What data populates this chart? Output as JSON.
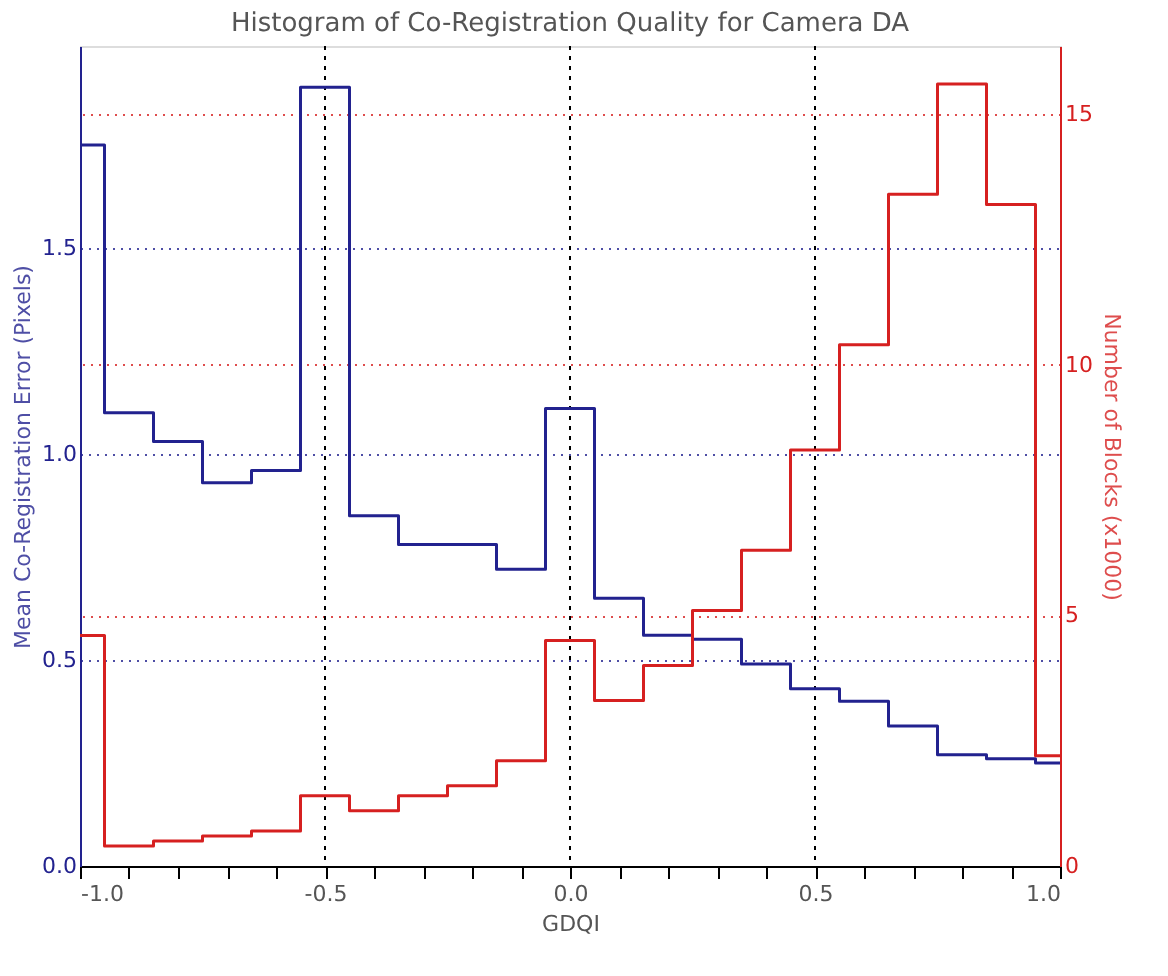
{
  "chart_data": {
    "type": "histogram",
    "title": "Histogram of Co-Registration Quality for Camera DA",
    "xlabel": "GDQI",
    "ylabel": "Mean Co-Registration Error (Pixels)",
    "y2label": "Number of Blocks (x1000)",
    "bins": [
      -1.0,
      -0.95,
      -0.85,
      -0.75,
      -0.65,
      -0.55,
      -0.45,
      -0.35,
      -0.25,
      -0.15,
      -0.05,
      0.05,
      0.15,
      0.25,
      0.35,
      0.45,
      0.55,
      0.65,
      0.75,
      0.85,
      0.95,
      1.0
    ],
    "series": [
      {
        "color": "#22228f",
        "values": [
          1.75,
          1.1,
          1.03,
          0.93,
          0.96,
          1.89,
          0.85,
          0.78,
          0.78,
          0.72,
          1.11,
          0.65,
          0.56,
          0.55,
          0.49,
          0.43,
          0.4,
          0.34,
          0.27,
          0.26,
          0.25
        ]
      },
      {
        "color": "#d62020",
        "axis": "y2",
        "values": [
          4.6,
          0.4,
          0.5,
          0.6,
          0.7,
          1.4,
          1.1,
          1.4,
          1.6,
          2.1,
          4.5,
          3.3,
          4.0,
          5.1,
          6.3,
          8.3,
          10.4,
          13.4,
          15.6,
          13.2,
          2.2
        ]
      }
    ],
    "xlim": [
      -1.0,
      1.0
    ],
    "xticks": [
      {
        "value": -1.0,
        "label": "-1.0"
      },
      {
        "value": -0.9,
        "label": null
      },
      {
        "value": -0.8,
        "label": null
      },
      {
        "value": -0.7,
        "label": null
      },
      {
        "value": -0.6,
        "label": null
      },
      {
        "value": -0.5,
        "label": "-0.5"
      },
      {
        "value": -0.4,
        "label": null
      },
      {
        "value": -0.3,
        "label": null
      },
      {
        "value": -0.2,
        "label": null
      },
      {
        "value": -0.1,
        "label": null
      },
      {
        "value": 0.0,
        "label": "0.0"
      },
      {
        "value": 0.1,
        "label": null
      },
      {
        "value": 0.2,
        "label": null
      },
      {
        "value": 0.3,
        "label": null
      },
      {
        "value": 0.4,
        "label": null
      },
      {
        "value": 0.5,
        "label": "0.5"
      },
      {
        "value": 0.6,
        "label": null
      },
      {
        "value": 0.7,
        "label": null
      },
      {
        "value": 0.8,
        "label": null
      },
      {
        "value": 0.9,
        "label": null
      },
      {
        "value": 1.0,
        "label": "1.0"
      }
    ],
    "ylim": [
      0,
      1.99
    ],
    "yticks": [
      {
        "value": 0,
        "label": "0.0"
      },
      {
        "value": 0.5,
        "label": "0.5"
      },
      {
        "value": 1.0,
        "label": "1.0"
      },
      {
        "value": 1.5,
        "label": "1.5"
      }
    ],
    "y2lim": [
      0,
      16.36
    ],
    "y2ticks": [
      0,
      5,
      10,
      15
    ],
    "grid": true
  }
}
